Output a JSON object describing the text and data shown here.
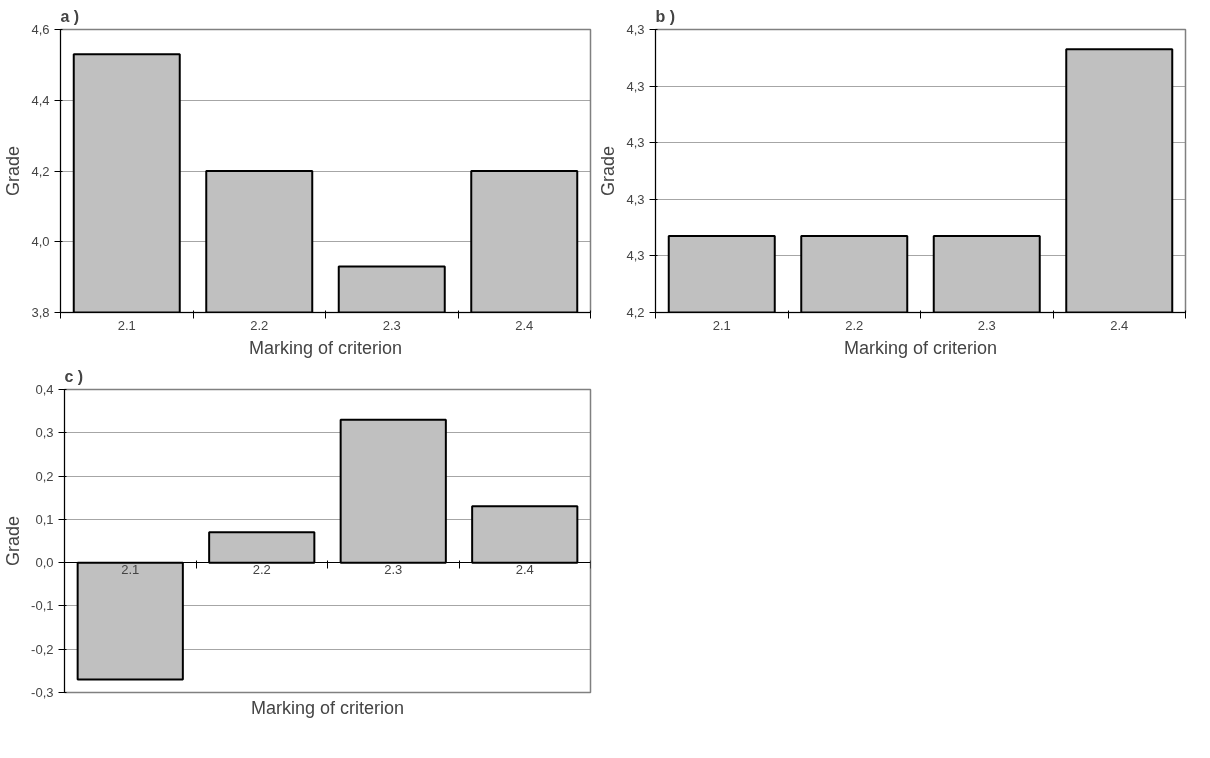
{
  "chart_data": [
    {
      "type": "bar",
      "title": "a )",
      "xlabel": "Marking of criterion",
      "ylabel": "Grade",
      "categories": [
        "2.1",
        "2.2",
        "2.3",
        "2.4"
      ],
      "values": [
        4.53,
        4.2,
        3.93,
        4.2
      ],
      "color": "#c0c0c0",
      "ylim": [
        3.8,
        4.6
      ],
      "yticks": [
        {
          "value": 3.8,
          "label": "3,8"
        },
        {
          "value": 4.0,
          "label": "4,0"
        },
        {
          "value": 4.2,
          "label": "4,2"
        },
        {
          "value": 4.4,
          "label": "4,4"
        },
        {
          "value": 4.6,
          "label": "4,6"
        }
      ],
      "grid": "y"
    },
    {
      "type": "bar",
      "title": "b )",
      "xlabel": "Marking of criterion",
      "ylabel": "Grade",
      "categories": [
        "2.1",
        "2.2",
        "2.3",
        "2.4"
      ],
      "values": [
        4.267,
        4.267,
        4.267,
        4.333
      ],
      "color": "#c0c0c0",
      "ylim": [
        4.24,
        4.34
      ],
      "yticks": [
        {
          "value": 4.24,
          "label": "4,2"
        },
        {
          "value": 4.26,
          "label": "4,3"
        },
        {
          "value": 4.28,
          "label": "4,3"
        },
        {
          "value": 4.3,
          "label": "4,3"
        },
        {
          "value": 4.32,
          "label": "4,3"
        },
        {
          "value": 4.34,
          "label": "4,3"
        }
      ],
      "grid": "y"
    },
    {
      "type": "bar",
      "title": "c )",
      "xlabel": "Marking of criterion",
      "ylabel": "Grade",
      "categories": [
        "2.1",
        "2.2",
        "2.3",
        "2.4"
      ],
      "values": [
        -0.27,
        0.07,
        0.33,
        0.13
      ],
      "color": "#c0c0c0",
      "ylim": [
        -0.3,
        0.4
      ],
      "yticks": [
        {
          "value": -0.3,
          "label": "-0,3"
        },
        {
          "value": -0.2,
          "label": "-0,2"
        },
        {
          "value": -0.1,
          "label": "-0,1"
        },
        {
          "value": 0.0,
          "label": "0,0"
        },
        {
          "value": 0.1,
          "label": "0,1"
        },
        {
          "value": 0.2,
          "label": "0,2"
        },
        {
          "value": 0.3,
          "label": "0,3"
        },
        {
          "value": 0.4,
          "label": "0,4"
        }
      ],
      "grid": "y"
    }
  ]
}
